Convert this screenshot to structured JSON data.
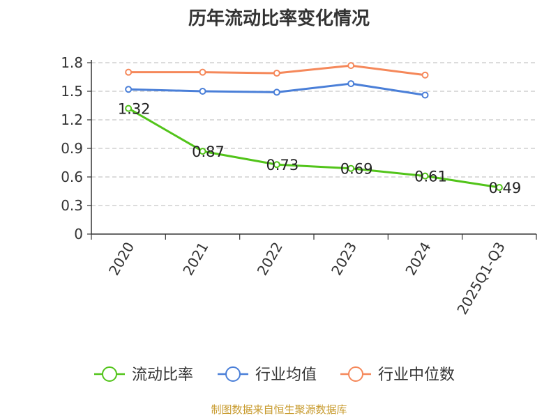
{
  "source_note": "制图数据来自恒生聚源数据库",
  "chart_data": {
    "type": "line",
    "title": "历年流动比率变化情况",
    "categories": [
      "2020",
      "2021",
      "2022",
      "2023",
      "2024",
      "2025Q1-Q3"
    ],
    "ylim": [
      0,
      1.8
    ],
    "yticks": [
      0,
      0.3,
      0.6,
      0.9,
      1.2,
      1.5,
      1.8
    ],
    "ytick_labels": [
      "0",
      "0.3",
      "0.6",
      "0.9",
      "1.2",
      "1.5",
      "1.8"
    ],
    "grid": true,
    "legend_position": "bottom",
    "series": [
      {
        "name": "流动比率",
        "color": "#52c41a",
        "values": [
          1.32,
          0.87,
          0.73,
          0.69,
          0.61,
          0.49
        ],
        "labels": [
          "1.32",
          "0.87",
          "0.73",
          "0.69",
          "0.61",
          "0.49"
        ],
        "show_labels": true
      },
      {
        "name": "行业均值",
        "color": "#4a7fd8",
        "values": [
          1.52,
          1.5,
          1.49,
          1.58,
          1.46,
          null
        ],
        "show_labels": false
      },
      {
        "name": "行业中位数",
        "color": "#f5885a",
        "values": [
          1.7,
          1.7,
          1.69,
          1.77,
          1.67,
          null
        ],
        "show_labels": false
      }
    ]
  }
}
